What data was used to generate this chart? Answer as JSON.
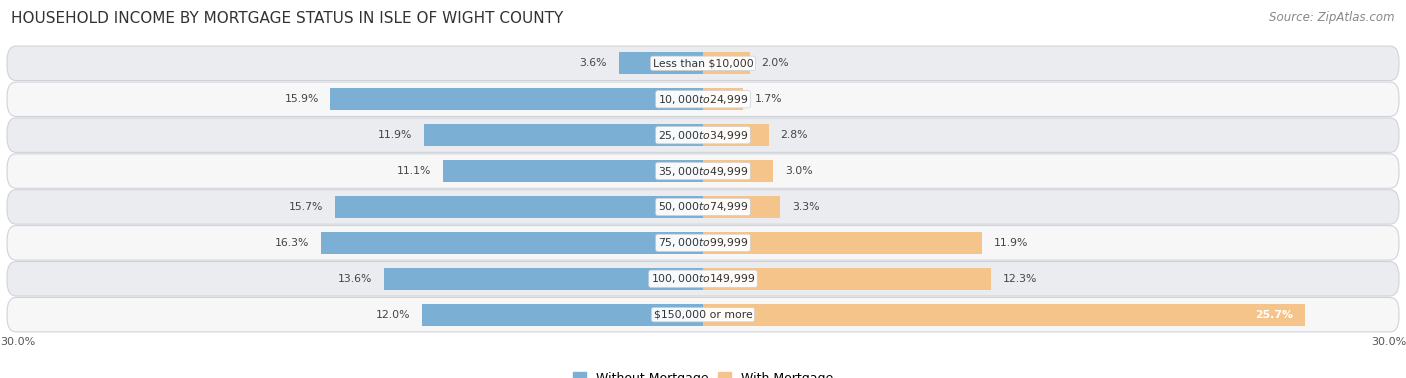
{
  "title": "HOUSEHOLD INCOME BY MORTGAGE STATUS IN ISLE OF WIGHT COUNTY",
  "source": "Source: ZipAtlas.com",
  "categories": [
    "Less than $10,000",
    "$10,000 to $24,999",
    "$25,000 to $34,999",
    "$35,000 to $49,999",
    "$50,000 to $74,999",
    "$75,000 to $99,999",
    "$100,000 to $149,999",
    "$150,000 or more"
  ],
  "without_mortgage": [
    3.6,
    15.9,
    11.9,
    11.1,
    15.7,
    16.3,
    13.6,
    12.0
  ],
  "with_mortgage": [
    2.0,
    1.7,
    2.8,
    3.0,
    3.3,
    11.9,
    12.3,
    25.7
  ],
  "color_without": "#7bafd4",
  "color_with": "#f5c48a",
  "background_row_odd": "#eaecf0",
  "background_row_even": "#f7f7f7",
  "row_border": "#d0d3d8",
  "xlim": 30.0,
  "title_fontsize": 11,
  "source_fontsize": 8.5,
  "label_fontsize": 7.8,
  "bar_label_fontsize": 7.8,
  "axis_label_fontsize": 8,
  "legend_fontsize": 9
}
